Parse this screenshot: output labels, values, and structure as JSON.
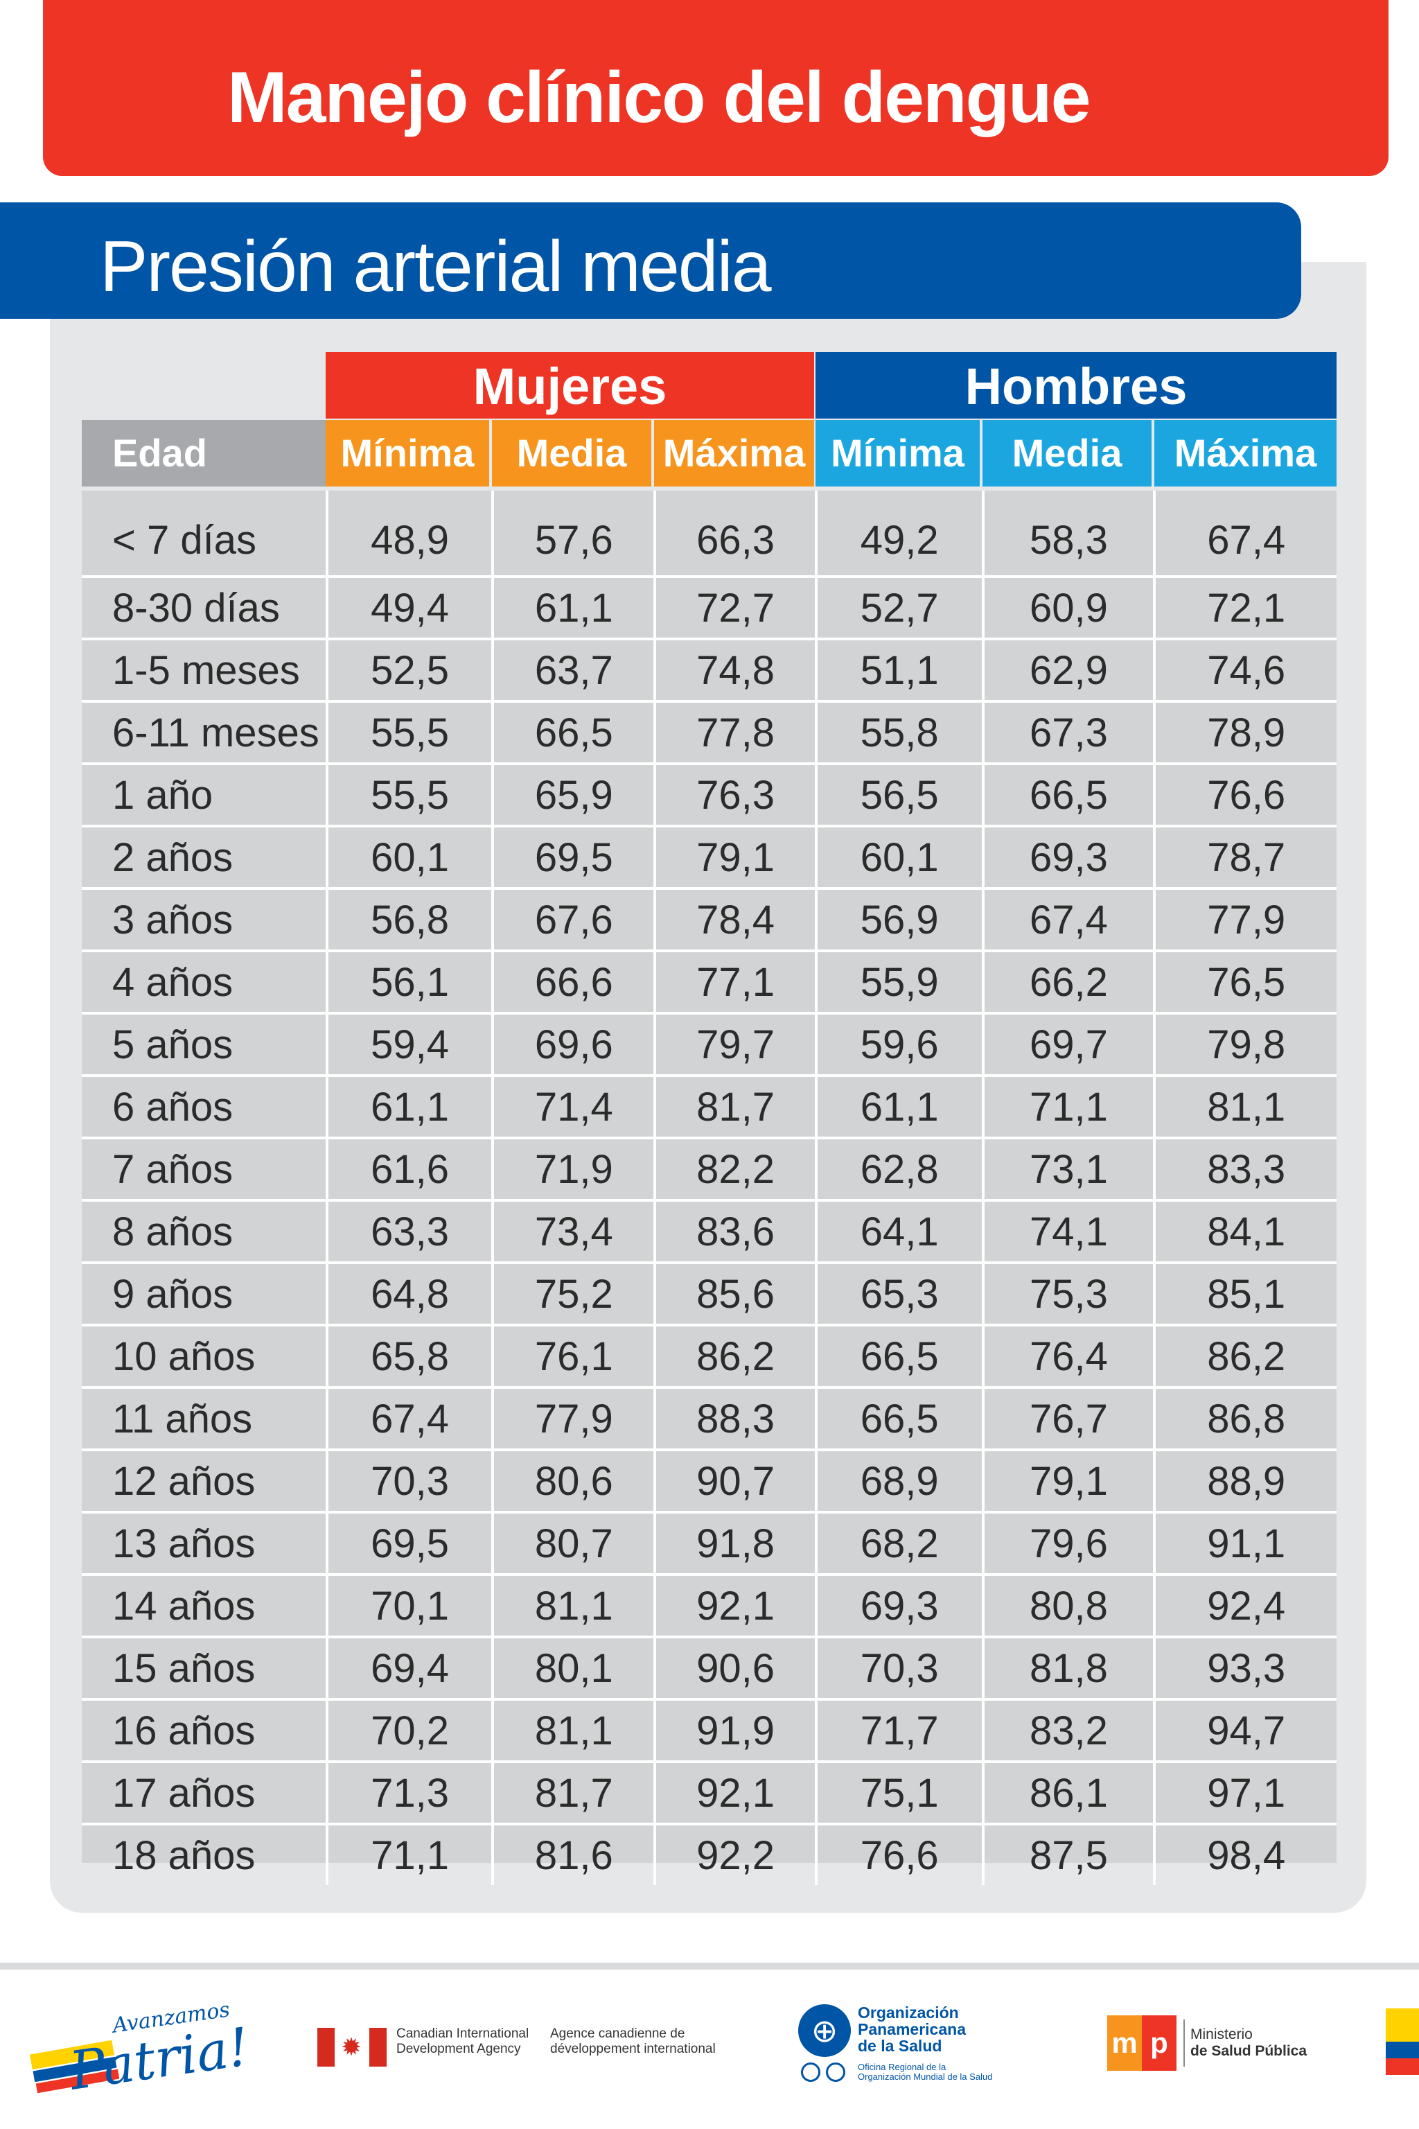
{
  "header": {
    "title": "Manejo clínico del dengue",
    "subtitle": "Presión arterial media"
  },
  "table": {
    "group_women": "Mujeres",
    "group_men": "Hombres",
    "col_edad": "Edad",
    "col_min": "Mínima",
    "col_media": "Media",
    "col_max": "Máxima",
    "rows": [
      {
        "edad": "< 7 días",
        "values": [
          "48,9",
          "57,6",
          "66,3",
          "49,2",
          "58,3",
          "67,4"
        ]
      },
      {
        "edad": "8-30 días",
        "values": [
          "49,4",
          "61,1",
          "72,7",
          "52,7",
          "60,9",
          "72,1"
        ]
      },
      {
        "edad": "1-5 meses",
        "values": [
          "52,5",
          "63,7",
          "74,8",
          "51,1",
          "62,9",
          "74,6"
        ]
      },
      {
        "edad": "6-11 meses",
        "values": [
          "55,5",
          "66,5",
          "77,8",
          "55,8",
          "67,3",
          "78,9"
        ]
      },
      {
        "edad": "1 año",
        "values": [
          "55,5",
          "65,9",
          "76,3",
          "56,5",
          "66,5",
          "76,6"
        ]
      },
      {
        "edad": "2 años",
        "values": [
          "60,1",
          "69,5",
          "79,1",
          "60,1",
          "69,3",
          "78,7"
        ]
      },
      {
        "edad": "3 años",
        "values": [
          "56,8",
          "67,6",
          "78,4",
          "56,9",
          "67,4",
          "77,9"
        ]
      },
      {
        "edad": "4 años",
        "values": [
          "56,1",
          "66,6",
          "77,1",
          "55,9",
          "66,2",
          "76,5"
        ]
      },
      {
        "edad": "5 años",
        "values": [
          "59,4",
          "69,6",
          "79,7",
          "59,6",
          "69,7",
          "79,8"
        ]
      },
      {
        "edad": "6 años",
        "values": [
          "61,1",
          "71,4",
          "81,7",
          "61,1",
          "71,1",
          "81,1"
        ]
      },
      {
        "edad": "7 años",
        "values": [
          "61,6",
          "71,9",
          "82,2",
          "62,8",
          "73,1",
          "83,3"
        ]
      },
      {
        "edad": "8 años",
        "values": [
          "63,3",
          "73,4",
          "83,6",
          "64,1",
          "74,1",
          "84,1"
        ]
      },
      {
        "edad": "9 años",
        "values": [
          "64,8",
          "75,2",
          "85,6",
          "65,3",
          "75,3",
          "85,1"
        ]
      },
      {
        "edad": "10 años",
        "values": [
          "65,8",
          "76,1",
          "86,2",
          "66,5",
          "76,4",
          "86,2"
        ]
      },
      {
        "edad": "11 años",
        "values": [
          "67,4",
          "77,9",
          "88,3",
          "66,5",
          "76,7",
          "86,8"
        ]
      },
      {
        "edad": "12 años",
        "values": [
          "70,3",
          "80,6",
          "90,7",
          "68,9",
          "79,1",
          "88,9"
        ]
      },
      {
        "edad": "13 años",
        "values": [
          "69,5",
          "80,7",
          "91,8",
          "68,2",
          "79,6",
          "91,1"
        ]
      },
      {
        "edad": "14 años",
        "values": [
          "70,1",
          "81,1",
          "92,1",
          "69,3",
          "80,8",
          "92,4"
        ]
      },
      {
        "edad": "15 años",
        "values": [
          "69,4",
          "80,1",
          "90,6",
          "70,3",
          "81,8",
          "93,3"
        ]
      },
      {
        "edad": "16 años",
        "values": [
          "70,2",
          "81,1",
          "91,9",
          "71,7",
          "83,2",
          "94,7"
        ]
      },
      {
        "edad": "17 años",
        "values": [
          "71,3",
          "81,7",
          "92,1",
          "75,1",
          "86,1",
          "97,1"
        ]
      },
      {
        "edad": "18 años",
        "values": [
          "71,1",
          "81,6",
          "92,2",
          "76,6",
          "87,5",
          "98,4"
        ]
      }
    ]
  },
  "footer": {
    "patria_small": "Avanzamos",
    "patria_big": "Patria!",
    "cida_en": "Canadian International Development Agency",
    "cida_fr": "Agence canadienne de développement international",
    "ops_name_1": "Organización",
    "ops_name_2": "Panamericana",
    "ops_name_3": "de la Salud",
    "ops_note_1": "Oficina Regional de la",
    "ops_note_2": "Organización Mundial de la Salud",
    "msp_m": "m",
    "msp_p": "p",
    "msp_line1": "Ministerio",
    "msp_line2": "de Salud Pública"
  },
  "colors": {
    "red": "#ee3424",
    "blue": "#0055a6",
    "orange": "#f7941d",
    "light_blue": "#1ba6e0",
    "grey": "#a7a9ac"
  }
}
